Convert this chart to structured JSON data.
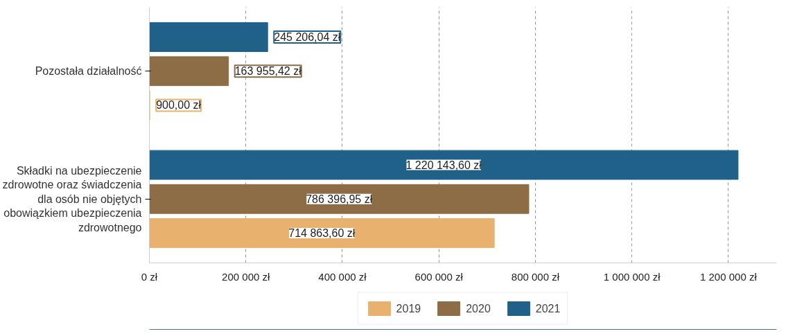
{
  "chart_data": {
    "type": "bar",
    "orientation": "horizontal",
    "categories": [
      "Pozostała działalność",
      "Składki na ubezpieczenie zdrowotne oraz świadczenia dla osób nie objętych obowiązkiem ubezpieczenia zdrowotnego"
    ],
    "series": [
      {
        "name": "2019",
        "color": "#e8b26e",
        "values": [
          900.0,
          714863.6
        ],
        "value_labels": [
          "900,00 zł",
          "714 863,60 zł"
        ]
      },
      {
        "name": "2020",
        "color": "#8c6d45",
        "values": [
          163955.42,
          786396.95
        ],
        "value_labels": [
          "163 955,42 zł",
          "786 396,95 zł"
        ]
      },
      {
        "name": "2021",
        "color": "#1f6189",
        "values": [
          245206.04,
          1220143.6
        ],
        "value_labels": [
          "245 206,04 zł",
          "1 220 143,60 zł"
        ]
      }
    ],
    "xlim": [
      0,
      1300000
    ],
    "xticks": [
      {
        "value": 0,
        "label": "0 zł"
      },
      {
        "value": 200000,
        "label": "200 000 zł"
      },
      {
        "value": 400000,
        "label": "400 000 zł"
      },
      {
        "value": 600000,
        "label": "600 000 zł"
      },
      {
        "value": 800000,
        "label": "800 000 zł"
      },
      {
        "value": 1000000,
        "label": "1 000 000 zł"
      },
      {
        "value": 1200000,
        "label": "1 200 000 zł"
      }
    ],
    "grid": "x",
    "legend": "bottom"
  }
}
